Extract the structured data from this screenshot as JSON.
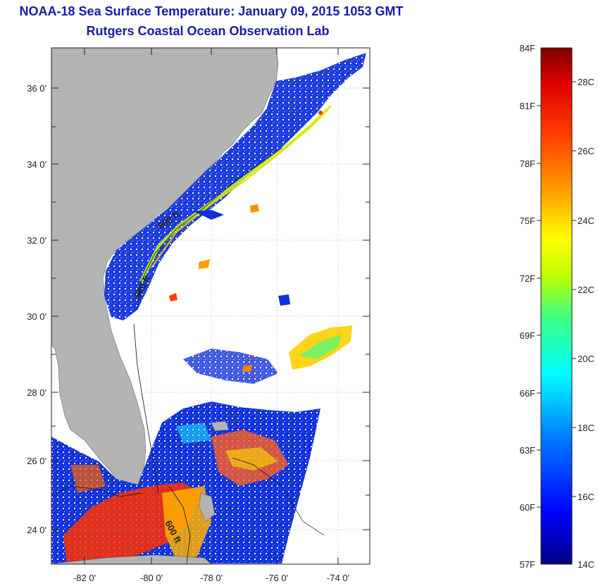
{
  "header": {
    "title": "NOAA-18 Sea Surface Temperature:  January 09, 2015 1053 GMT",
    "subtitle": "Rutgers Coastal Ocean Observation Lab"
  },
  "map": {
    "lat_labels": [
      "36 0'",
      "34 0'",
      "32 0'",
      "30 0'",
      "28 0'",
      "26 0'",
      "24 0'"
    ],
    "lon_labels": [
      "-82 0'",
      "-80 0'",
      "-78 0'",
      "-76 0'",
      "-74 0'"
    ],
    "contour_labels": [
      "600 ft",
      "600 ft",
      "600 ft"
    ]
  },
  "colorbar": {
    "f_labels": [
      "84F",
      "81F",
      "78F",
      "75F",
      "72F",
      "69F",
      "66F",
      "63F",
      "60F",
      "57F"
    ],
    "c_labels": [
      "28C",
      "26C",
      "24C",
      "22C",
      "20C",
      "18C",
      "16C",
      "14C"
    ],
    "colors": [
      "#000080",
      "#0000ff",
      "#0080ff",
      "#00ffff",
      "#40ff80",
      "#c0ff00",
      "#ffff00",
      "#ffa000",
      "#ff4000",
      "#e00000",
      "#800000"
    ]
  }
}
